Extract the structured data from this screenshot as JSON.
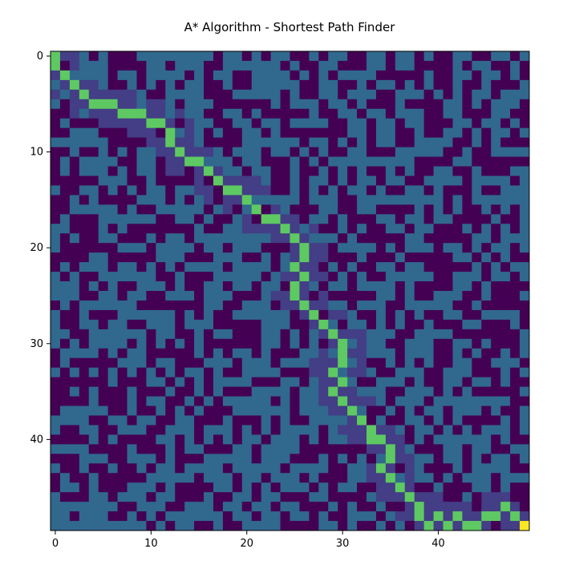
{
  "chart_data": {
    "type": "heatmap",
    "title": "A* Algorithm - Shortest Path Finder",
    "xlabel": "",
    "ylabel": "",
    "rows": 50,
    "cols": 50,
    "x_ticks": [
      0,
      10,
      20,
      30,
      40
    ],
    "y_ticks": [
      0,
      10,
      20,
      30,
      40
    ],
    "colormap": "viridis",
    "legend": "none",
    "cell_classes": {
      "obstacle": "#440154",
      "explored": "#433e85",
      "open": "#31688e",
      "path": "#5ec962",
      "goal": "#fde725"
    },
    "start": [
      0,
      0
    ],
    "goal": [
      49,
      49
    ],
    "path": [
      [
        0,
        0
      ],
      [
        1,
        0
      ],
      [
        2,
        1
      ],
      [
        3,
        2
      ],
      [
        4,
        3
      ],
      [
        5,
        4
      ],
      [
        5,
        5
      ],
      [
        5,
        6
      ],
      [
        6,
        7
      ],
      [
        6,
        8
      ],
      [
        6,
        9
      ],
      [
        7,
        10
      ],
      [
        7,
        11
      ],
      [
        8,
        12
      ],
      [
        9,
        12
      ],
      [
        10,
        13
      ],
      [
        11,
        14
      ],
      [
        11,
        15
      ],
      [
        12,
        16
      ],
      [
        13,
        17
      ],
      [
        14,
        18
      ],
      [
        14,
        19
      ],
      [
        15,
        20
      ],
      [
        16,
        21
      ],
      [
        17,
        22
      ],
      [
        17,
        23
      ],
      [
        18,
        24
      ],
      [
        19,
        25
      ],
      [
        20,
        26
      ],
      [
        21,
        26
      ],
      [
        22,
        25
      ],
      [
        23,
        26
      ],
      [
        24,
        25
      ],
      [
        25,
        25
      ],
      [
        26,
        26
      ],
      [
        27,
        27
      ],
      [
        28,
        28
      ],
      [
        29,
        29
      ],
      [
        30,
        30
      ],
      [
        31,
        30
      ],
      [
        32,
        30
      ],
      [
        33,
        29
      ],
      [
        34,
        30
      ],
      [
        35,
        29
      ],
      [
        36,
        30
      ],
      [
        37,
        31
      ],
      [
        38,
        32
      ],
      [
        39,
        33
      ],
      [
        40,
        33
      ],
      [
        40,
        34
      ],
      [
        41,
        35
      ],
      [
        42,
        35
      ],
      [
        43,
        34
      ],
      [
        44,
        35
      ],
      [
        45,
        36
      ],
      [
        46,
        37
      ],
      [
        47,
        38
      ],
      [
        48,
        38
      ],
      [
        49,
        39
      ],
      [
        48,
        40
      ],
      [
        49,
        41
      ],
      [
        48,
        42
      ],
      [
        49,
        43
      ],
      [
        49,
        44
      ],
      [
        48,
        45
      ],
      [
        48,
        46
      ],
      [
        47,
        47
      ],
      [
        48,
        48
      ]
    ],
    "obstacle_density": 0.45,
    "open_density": 0.42,
    "seed": 7
  }
}
